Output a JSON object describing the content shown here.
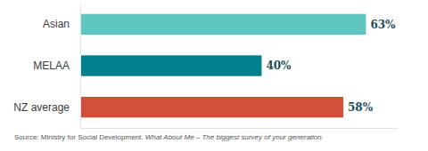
{
  "chart_data": {
    "type": "bar",
    "orientation": "horizontal",
    "categories": [
      "Asian",
      "MELAA",
      "NZ average"
    ],
    "values": [
      63,
      40,
      58
    ],
    "value_labels": [
      "63%",
      "40%",
      "58%"
    ],
    "colors": [
      "#5fc7c0",
      "#00808a",
      "#d24e3b"
    ],
    "xlim": [
      0,
      70
    ],
    "data_labels": true,
    "tick_labels": "y",
    "grid": false,
    "source": "Source: Ministry for Social Development. ",
    "source_title": "What About Me – The biggest survey of your generation."
  }
}
